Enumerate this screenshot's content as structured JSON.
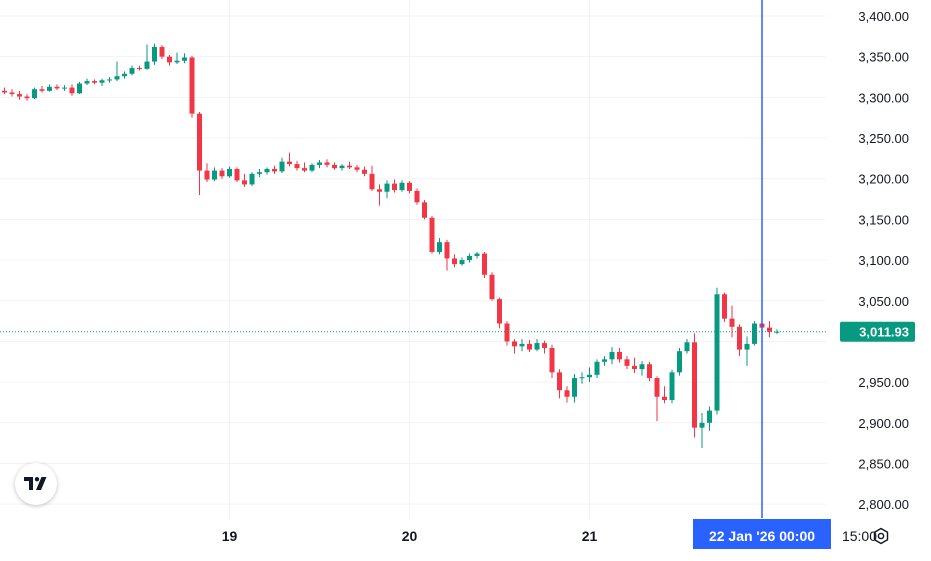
{
  "chart_data": {
    "type": "candlestick",
    "y_axis": {
      "position": "right",
      "min": 2790,
      "max": 3410,
      "tick_values": [
        3400,
        3350,
        3300,
        3250,
        3200,
        3150,
        3100,
        3050,
        2950,
        2900,
        2850,
        2800
      ],
      "tick_labels": [
        "3,400.00",
        "3,350.00",
        "3,300.00",
        "3,250.00",
        "3,200.00",
        "3,150.00",
        "3,100.00",
        "3,050.00",
        "2,950.00",
        "2,900.00",
        "2,850.00",
        "2,800.00"
      ]
    },
    "x_axis": {
      "bar_interval": "1h",
      "ticks": [
        {
          "bar": 30,
          "label": "19"
        },
        {
          "bar": 54,
          "label": "20"
        },
        {
          "bar": 78,
          "label": "21"
        },
        {
          "bar": 114,
          "label": "15:00"
        }
      ],
      "crosshair_bar": 101,
      "crosshair_label": "22 Jan '26   00:00"
    },
    "last_price": 3011.93,
    "last_price_label": "3,011.93",
    "grid": true,
    "colors": {
      "up": "#089981",
      "down": "#f23645",
      "crosshair": "#2962ff",
      "price_label_bg": "#089981"
    },
    "candles": [
      [
        3308,
        3312,
        3304,
        3306
      ],
      [
        3306,
        3310,
        3301,
        3304
      ],
      [
        3304,
        3308,
        3297,
        3301
      ],
      [
        3301,
        3304,
        3296,
        3299
      ],
      [
        3299,
        3312,
        3298,
        3310
      ],
      [
        3310,
        3314,
        3306,
        3308
      ],
      [
        3308,
        3316,
        3307,
        3313
      ],
      [
        3313,
        3316,
        3309,
        3311
      ],
      [
        3311,
        3315,
        3308,
        3312
      ],
      [
        3312,
        3316,
        3302,
        3305
      ],
      [
        3305,
        3319,
        3304,
        3317
      ],
      [
        3317,
        3323,
        3315,
        3320
      ],
      [
        3320,
        3322,
        3316,
        3318
      ],
      [
        3318,
        3323,
        3314,
        3321
      ],
      [
        3321,
        3325,
        3318,
        3322
      ],
      [
        3322,
        3344,
        3320,
        3326
      ],
      [
        3326,
        3332,
        3323,
        3329
      ],
      [
        3329,
        3339,
        3327,
        3336
      ],
      [
        3336,
        3339,
        3333,
        3335
      ],
      [
        3335,
        3365,
        3334,
        3344
      ],
      [
        3344,
        3366,
        3340,
        3362
      ],
      [
        3362,
        3364,
        3347,
        3350
      ],
      [
        3350,
        3352,
        3339,
        3343
      ],
      [
        3343,
        3355,
        3341,
        3345
      ],
      [
        3345,
        3354,
        3342,
        3349
      ],
      [
        3349,
        3351,
        3275,
        3280
      ],
      [
        3280,
        3282,
        3180,
        3210
      ],
      [
        3210,
        3219,
        3196,
        3199
      ],
      [
        3199,
        3214,
        3197,
        3210
      ],
      [
        3210,
        3213,
        3200,
        3203
      ],
      [
        3203,
        3215,
        3201,
        3212
      ],
      [
        3212,
        3214,
        3196,
        3198
      ],
      [
        3198,
        3206,
        3190,
        3193
      ],
      [
        3193,
        3208,
        3191,
        3206
      ],
      [
        3206,
        3212,
        3202,
        3208
      ],
      [
        3208,
        3214,
        3205,
        3212
      ],
      [
        3212,
        3216,
        3206,
        3209
      ],
      [
        3209,
        3226,
        3207,
        3221
      ],
      [
        3221,
        3232,
        3215,
        3218
      ],
      [
        3218,
        3222,
        3210,
        3213
      ],
      [
        3213,
        3220,
        3208,
        3210
      ],
      [
        3210,
        3219,
        3208,
        3217
      ],
      [
        3217,
        3223,
        3213,
        3220
      ],
      [
        3220,
        3224,
        3214,
        3217
      ],
      [
        3217,
        3220,
        3211,
        3213
      ],
      [
        3213,
        3218,
        3210,
        3216
      ],
      [
        3216,
        3221,
        3212,
        3214
      ],
      [
        3214,
        3217,
        3208,
        3211
      ],
      [
        3211,
        3215,
        3203,
        3206
      ],
      [
        3206,
        3216,
        3185,
        3187
      ],
      [
        3187,
        3193,
        3167,
        3184
      ],
      [
        3184,
        3198,
        3176,
        3194
      ],
      [
        3194,
        3199,
        3183,
        3186
      ],
      [
        3186,
        3198,
        3184,
        3195
      ],
      [
        3195,
        3197,
        3182,
        3185
      ],
      [
        3185,
        3188,
        3168,
        3171
      ],
      [
        3171,
        3174,
        3150,
        3152
      ],
      [
        3152,
        3154,
        3108,
        3110
      ],
      [
        3110,
        3127,
        3107,
        3122
      ],
      [
        3122,
        3125,
        3087,
        3102
      ],
      [
        3102,
        3107,
        3091,
        3095
      ],
      [
        3095,
        3103,
        3093,
        3100
      ],
      [
        3100,
        3108,
        3097,
        3105
      ],
      [
        3105,
        3110,
        3102,
        3108
      ],
      [
        3108,
        3110,
        3078,
        3082
      ],
      [
        3082,
        3085,
        3050,
        3052
      ],
      [
        3052,
        3054,
        3016,
        3022
      ],
      [
        3022,
        3025,
        2995,
        3000
      ],
      [
        3000,
        3003,
        2985,
        2994
      ],
      [
        2994,
        3003,
        2988,
        2997
      ],
      [
        2997,
        3002,
        2987,
        2990
      ],
      [
        2990,
        3003,
        2988,
        2998
      ],
      [
        2998,
        3001,
        2985,
        2992
      ],
      [
        2992,
        2996,
        2955,
        2962
      ],
      [
        2962,
        2966,
        2930,
        2940
      ],
      [
        2940,
        2945,
        2925,
        2932
      ],
      [
        2932,
        2960,
        2925,
        2955
      ],
      [
        2955,
        2962,
        2948,
        2956
      ],
      [
        2956,
        2968,
        2950,
        2959
      ],
      [
        2959,
        2978,
        2955,
        2975
      ],
      [
        2975,
        2982,
        2970,
        2978
      ],
      [
        2978,
        2993,
        2972,
        2987
      ],
      [
        2987,
        2992,
        2974,
        2978
      ],
      [
        2978,
        2982,
        2966,
        2970
      ],
      [
        2970,
        2980,
        2961,
        2966
      ],
      [
        2966,
        2976,
        2958,
        2972
      ],
      [
        2972,
        2975,
        2951,
        2955
      ],
      [
        2955,
        2957,
        2902,
        2932
      ],
      [
        2932,
        2945,
        2924,
        2928
      ],
      [
        2928,
        2965,
        2924,
        2962
      ],
      [
        2962,
        2992,
        2958,
        2988
      ],
      [
        2988,
        3003,
        2985,
        2999
      ],
      [
        2999,
        3010,
        2882,
        2894
      ],
      [
        2894,
        2912,
        2869,
        2900
      ],
      [
        2900,
        2920,
        2890,
        2915
      ],
      [
        2915,
        3066,
        2910,
        3058
      ],
      [
        3058,
        3060,
        3024,
        3028
      ],
      [
        3028,
        3044,
        3005,
        3018
      ],
      [
        3018,
        3021,
        2982,
        2990
      ],
      [
        2990,
        3006,
        2970,
        2997
      ],
      [
        2997,
        3025,
        2995,
        3022
      ],
      [
        3022,
        3029,
        3010,
        3017
      ],
      [
        3017,
        3025,
        3005,
        3012
      ],
      [
        3012,
        3015,
        3009,
        3012
      ]
    ]
  },
  "icons": {
    "logo": "tradingview-logo-icon",
    "settings": "gear-icon"
  }
}
